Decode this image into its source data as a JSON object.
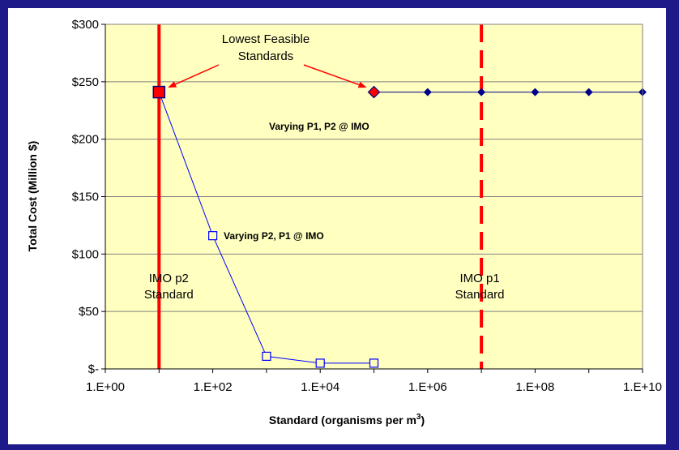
{
  "chart_data": {
    "type": "scatter",
    "x_scale": "log",
    "xlim": [
      1,
      10000000000
    ],
    "ylim": [
      0,
      300
    ],
    "x_ticks": [
      "1.E+00",
      "1.E+02",
      "1.E+04",
      "1.E+06",
      "1.E+08",
      "1.E+10"
    ],
    "x_tick_values": [
      1,
      100,
      10000,
      1000000,
      100000000,
      10000000000
    ],
    "y_ticks": [
      "$-",
      "$50",
      "$100",
      "$150",
      "$200",
      "$250",
      "$300"
    ],
    "y_tick_values": [
      0,
      50,
      100,
      150,
      200,
      250,
      300
    ],
    "xlabel": "Standard (organisms per m",
    "xlabel_sup": "3",
    "xlabel_tail": ")",
    "ylabel": "Total Cost (Million $)",
    "grid": "horizontal",
    "plot_bg": "#ffffc0",
    "series": [
      {
        "x": [
          10,
          100,
          1000,
          10000,
          100000
        ],
        "y": [
          241,
          116,
          11,
          5,
          5
        ],
        "color": "#0000ff",
        "marker": "open-square"
      },
      {
        "x": [
          100000,
          1000000,
          10000000,
          100000000,
          1000000000,
          10000000000
        ],
        "y": [
          241,
          241,
          241,
          241,
          241,
          241
        ],
        "color": "#00008b",
        "marker": "filled-diamond"
      }
    ],
    "highlight_points": [
      {
        "x": 10,
        "y": 241,
        "marker": "square",
        "color": "#ff0000"
      },
      {
        "x": 100000,
        "y": 241,
        "marker": "diamond",
        "color": "#ff0000"
      }
    ],
    "reference_lines": [
      {
        "x": 10,
        "style": "solid",
        "color": "#ff0000",
        "label_lines": [
          "IMO p2",
          "Standard"
        ]
      },
      {
        "x": 10000000,
        "style": "dashed",
        "color": "#ff0000",
        "label_lines": [
          "IMO p1",
          "Standard"
        ]
      }
    ],
    "annotations": {
      "lowest_feasible": [
        "Lowest Feasible",
        "Standards"
      ],
      "varying_p1": "Varying P1, P2 @ IMO",
      "varying_p2": "Varying P2, P1 @ IMO"
    }
  }
}
